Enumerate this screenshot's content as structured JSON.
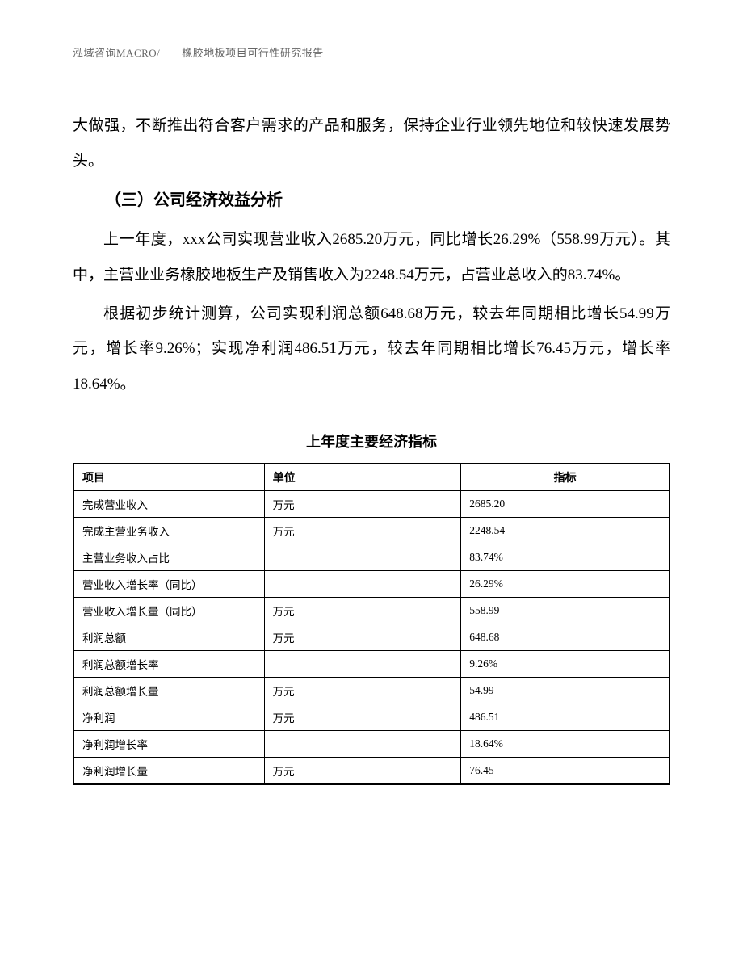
{
  "header": {
    "text": "泓域咨询MACRO/　　橡胶地板项目可行性研究报告"
  },
  "paragraphs": {
    "p1": "大做强，不断推出符合客户需求的产品和服务，保持企业行业领先地位和较快速发展势头。",
    "heading": "（三）公司经济效益分析",
    "p2": "上一年度，xxx公司实现营业收入2685.20万元，同比增长26.29%（558.99万元）。其中，主营业业务橡胶地板生产及销售收入为2248.54万元，占营业总收入的83.74%。",
    "p3": "根据初步统计测算，公司实现利润总额648.68万元，较去年同期相比增长54.99万元，增长率9.26%；实现净利润486.51万元，较去年同期相比增长76.45万元，增长率18.64%。"
  },
  "table": {
    "title": "上年度主要经济指标",
    "columns": [
      "项目",
      "单位",
      "指标"
    ],
    "rows": [
      [
        "完成营业收入",
        "万元",
        "2685.20"
      ],
      [
        "完成主营业务收入",
        "万元",
        "2248.54"
      ],
      [
        "主营业务收入占比",
        "",
        "83.74%"
      ],
      [
        "营业收入增长率（同比）",
        "",
        "26.29%"
      ],
      [
        "营业收入增长量（同比）",
        "万元",
        "558.99"
      ],
      [
        "利润总额",
        "万元",
        "648.68"
      ],
      [
        "利润总额增长率",
        "",
        "9.26%"
      ],
      [
        "利润总额增长量",
        "万元",
        "54.99"
      ],
      [
        "净利润",
        "万元",
        "486.51"
      ],
      [
        "净利润增长率",
        "",
        "18.64%"
      ],
      [
        "净利润增长量",
        "万元",
        "76.45"
      ]
    ]
  },
  "styling": {
    "body_font_size": 19,
    "body_line_height": 2.3,
    "heading_font_size": 20,
    "table_title_font_size": 18,
    "table_header_font_size": 14,
    "table_cell_font_size": 13.5,
    "header_font_size": 13,
    "text_color": "#000000",
    "header_color": "#666666",
    "background_color": "#ffffff",
    "border_color": "#000000",
    "col_widths": [
      "32%",
      "33%",
      "35%"
    ]
  }
}
